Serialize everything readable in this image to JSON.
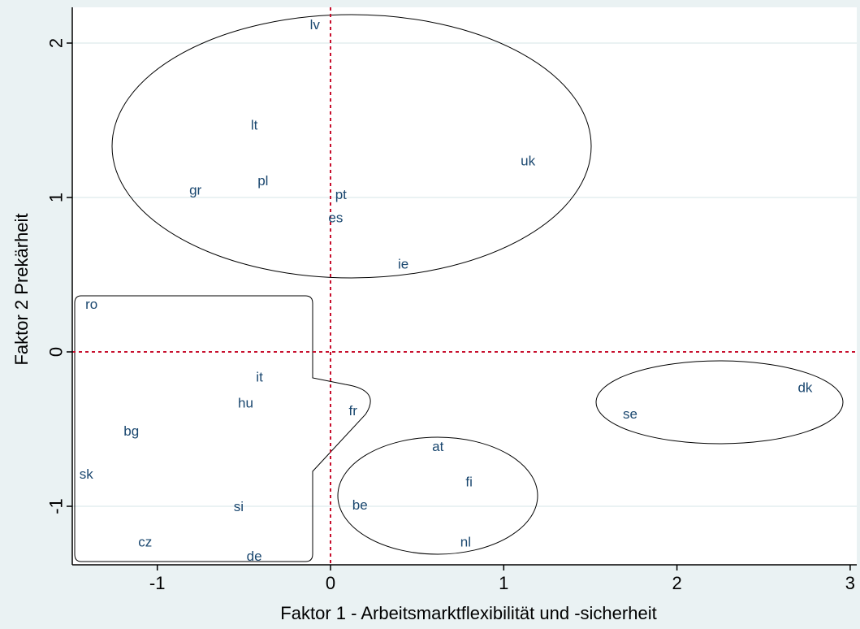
{
  "chart_data": {
    "type": "scatter",
    "title": "",
    "xlabel": "Faktor 1 - Arbeitsmarktflexibilität und -sicherheit",
    "ylabel": "Faktor 2 Prekärheit",
    "xlim": [
      -1.5,
      3.05
    ],
    "ylim": [
      -1.4,
      2.2
    ],
    "xticks": [
      -1,
      0,
      1,
      2,
      3
    ],
    "yticks": [
      -1,
      0,
      1,
      2
    ],
    "grid": "horizontal",
    "reference_lines": {
      "x": 0,
      "y": 0,
      "color": "#c8102e",
      "style": "dashed"
    },
    "points": [
      {
        "label": "lv",
        "x": -0.09,
        "y": 2.12
      },
      {
        "label": "lt",
        "x": -0.44,
        "y": 1.47
      },
      {
        "label": "uk",
        "x": 1.14,
        "y": 1.24
      },
      {
        "label": "gr",
        "x": -0.78,
        "y": 1.05
      },
      {
        "label": "pl",
        "x": -0.39,
        "y": 1.11
      },
      {
        "label": "pt",
        "x": 0.06,
        "y": 1.02
      },
      {
        "label": "es",
        "x": 0.03,
        "y": 0.87
      },
      {
        "label": "ie",
        "x": 0.42,
        "y": 0.57
      },
      {
        "label": "ro",
        "x": -1.38,
        "y": 0.31
      },
      {
        "label": "it",
        "x": -0.41,
        "y": -0.16
      },
      {
        "label": "hu",
        "x": -0.49,
        "y": -0.33
      },
      {
        "label": "fr",
        "x": 0.13,
        "y": -0.38
      },
      {
        "label": "bg",
        "x": -1.15,
        "y": -0.51
      },
      {
        "label": "sk",
        "x": -1.41,
        "y": -0.79
      },
      {
        "label": "si",
        "x": -0.53,
        "y": -1.0
      },
      {
        "label": "cz",
        "x": -1.07,
        "y": -1.23
      },
      {
        "label": "de",
        "x": -0.44,
        "y": -1.32
      },
      {
        "label": "at",
        "x": 0.62,
        "y": -0.61
      },
      {
        "label": "fi",
        "x": 0.8,
        "y": -0.84
      },
      {
        "label": "be",
        "x": 0.17,
        "y": -0.99
      },
      {
        "label": "nl",
        "x": 0.78,
        "y": -1.23
      },
      {
        "label": "dk",
        "x": 2.74,
        "y": -0.23
      },
      {
        "label": "se",
        "x": 1.73,
        "y": -0.4
      }
    ],
    "clusters": [
      {
        "shape": "ellipse",
        "members": [
          "lv",
          "lt",
          "uk",
          "gr",
          "pl",
          "pt",
          "es",
          "ie"
        ]
      },
      {
        "shape": "rounded-outline",
        "members": [
          "ro",
          "it",
          "hu",
          "fr",
          "bg",
          "sk",
          "si",
          "cz",
          "de"
        ]
      },
      {
        "shape": "ellipse",
        "members": [
          "at",
          "fi",
          "be",
          "nl"
        ]
      },
      {
        "shape": "ellipse",
        "members": [
          "dk",
          "se"
        ]
      }
    ],
    "colors": {
      "background": "#eaf2f3",
      "plot_background": "#ffffff",
      "gridline": "#eaf2f3",
      "reference_line": "#c8102e",
      "label": "#1a476f",
      "outline": "#000000"
    }
  }
}
